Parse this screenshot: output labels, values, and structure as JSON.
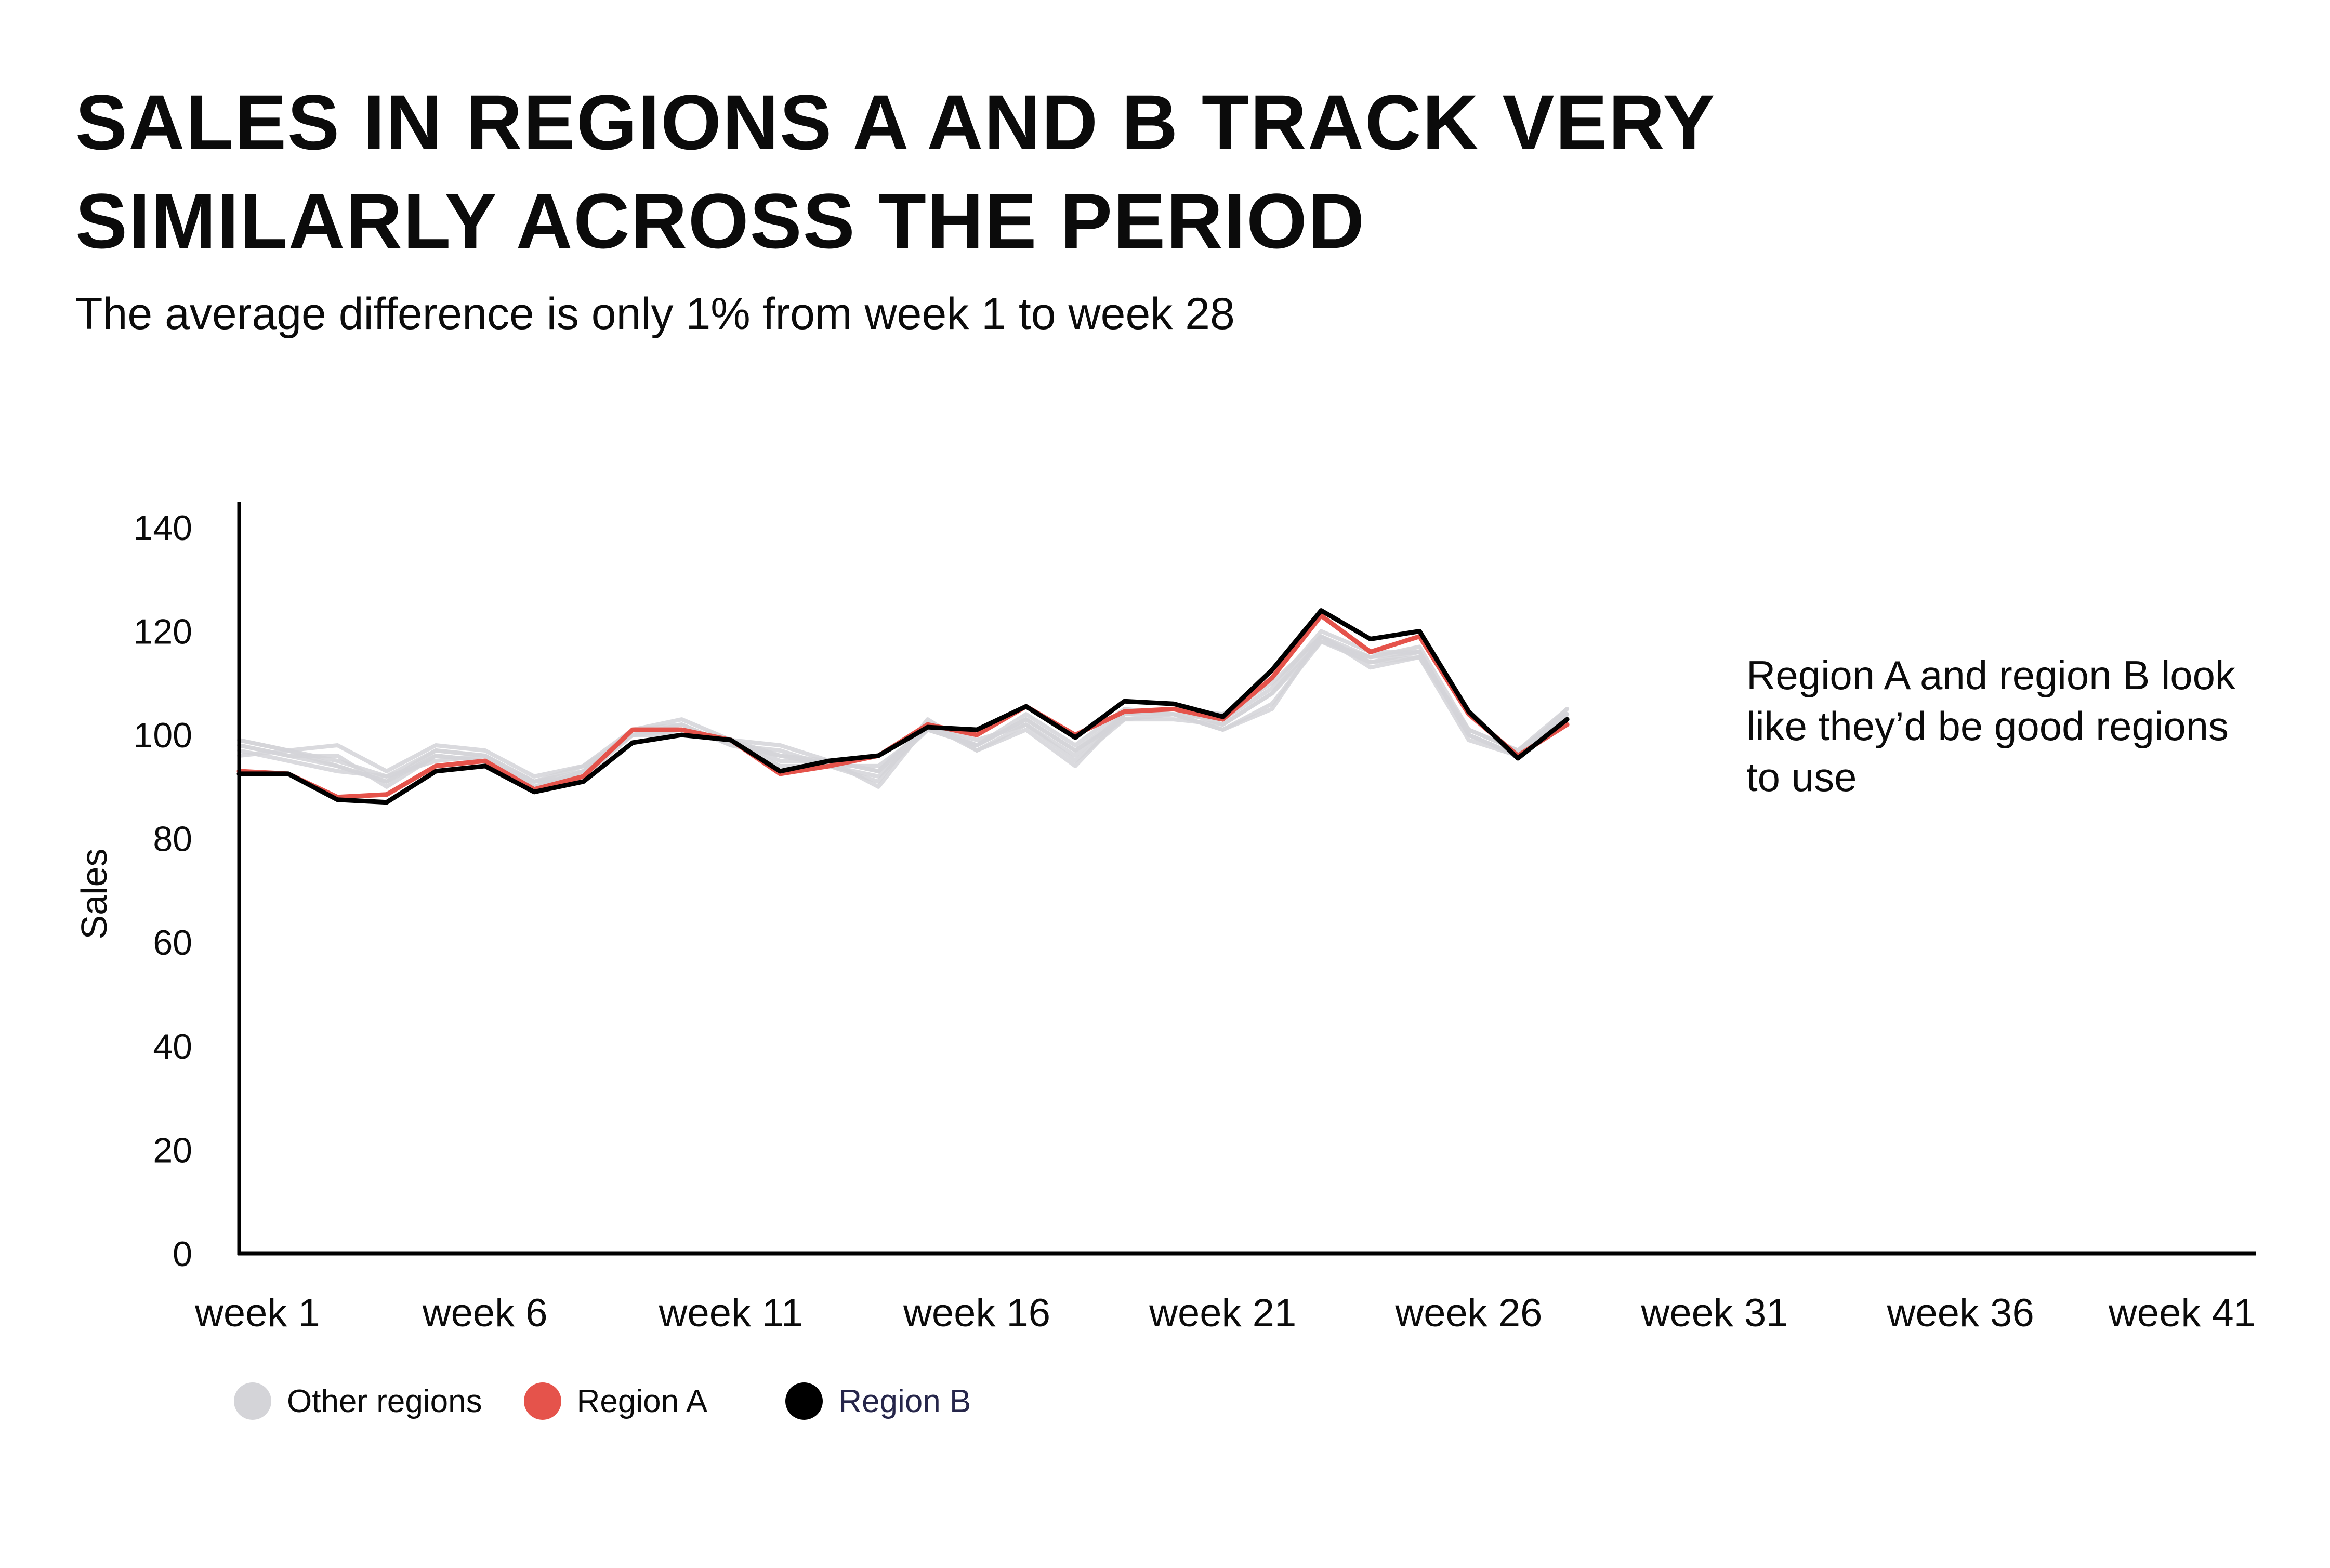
{
  "title": "SALES IN REGIONS A AND B TRACK VERY SIMILARLY ACROSS THE PERIOD",
  "subtitle": "The average difference is only 1% from week 1 to week 28",
  "annotation": "Region A and region B look like they’d be good regions to use",
  "colors": {
    "other": "#d4d4d8",
    "regionA": "#e5534b",
    "regionB": "#000000",
    "regionB_legend_text": "#26264a",
    "axis": "#000000"
  },
  "legend": [
    {
      "label": "Other regions",
      "color": "#d4d4d8",
      "text_color": "#0b0b0b"
    },
    {
      "label": "Region A",
      "color": "#e5534b",
      "text_color": "#0b0b0b"
    },
    {
      "label": "Region B",
      "color": "#000000",
      "text_color": "#26264a"
    }
  ],
  "chart_data": {
    "type": "line",
    "title": "SALES IN REGIONS A AND B TRACK VERY SIMILARLY ACROSS THE PERIOD",
    "subtitle": "The average difference is only 1% from week 1 to week 28",
    "xlabel": "",
    "ylabel": "Sales",
    "ylim": [
      0,
      145
    ],
    "yticks": [
      0,
      20,
      40,
      60,
      80,
      100,
      120,
      140
    ],
    "x_range": [
      1,
      42
    ],
    "xtick_weeks": [
      1,
      6,
      11,
      16,
      21,
      26,
      31,
      36,
      41
    ],
    "xtick_labels": [
      "week 1",
      "week 6",
      "week 11",
      "week 16",
      "week 21",
      "week 26",
      "week 31",
      "week 36",
      "week 41"
    ],
    "legend_position": "bottom-left",
    "series": [
      {
        "name": "Other regions",
        "group": "other",
        "values": [
          99,
          97,
          98,
          93,
          98,
          97,
          92,
          94,
          101,
          103,
          99,
          98,
          95,
          90,
          102,
          97,
          101,
          94,
          104,
          104,
          101,
          105,
          119,
          114,
          116,
          100,
          96,
          105
        ]
      },
      {
        "name": "Other regions",
        "group": "other",
        "values": [
          98,
          96,
          94,
          91,
          96,
          95,
          90,
          93,
          100,
          102,
          98,
          96,
          94,
          92,
          101,
          98,
          103,
          97,
          103,
          103,
          102,
          108,
          118,
          115,
          117,
          101,
          97,
          104
        ]
      },
      {
        "name": "Other regions",
        "group": "other",
        "values": [
          97,
          95,
          93,
          92,
          95,
          96,
          91,
          92,
          100,
          101,
          99,
          95,
          95,
          93,
          102,
          99,
          102,
          96,
          104,
          105,
          104,
          110,
          119,
          113,
          115,
          99,
          96,
          104
        ]
      },
      {
        "name": "Other regions",
        "group": "other",
        "values": [
          96,
          97,
          95,
          92,
          97,
          96,
          90,
          93,
          100,
          100,
          99,
          94,
          94,
          94,
          101,
          98,
          104,
          98,
          105,
          104,
          103,
          109,
          120,
          116,
          116,
          100,
          96,
          103
        ]
      },
      {
        "name": "Other regions",
        "group": "other",
        "values": [
          98,
          96,
          96,
          90,
          96,
          95,
          91,
          93,
          101,
          102,
          98,
          97,
          94,
          91,
          103,
          97,
          102,
          95,
          103,
          104,
          101,
          106,
          118,
          114,
          115,
          101,
          97,
          105
        ]
      },
      {
        "name": "Other regions",
        "group": "other",
        "values": [
          99,
          97,
          94,
          91,
          97,
          96,
          91,
          94,
          100,
          101,
          99,
          96,
          95,
          93,
          102,
          98,
          103,
          97,
          104,
          105,
          102,
          108,
          119,
          115,
          116,
          100,
          96,
          104
        ]
      },
      {
        "name": "Region A",
        "group": "regionA",
        "values": [
          93,
          92.5,
          88,
          88.5,
          94,
          95,
          89.5,
          92,
          101,
          101,
          99,
          92.5,
          94,
          96,
          102,
          100,
          105.5,
          100,
          104.5,
          105,
          103,
          111,
          123,
          116,
          119,
          104,
          96,
          102
        ]
      },
      {
        "name": "Region B",
        "group": "regionB",
        "values": [
          92.5,
          92.5,
          87.5,
          87,
          93,
          94,
          89,
          91,
          98.5,
          100,
          99,
          93,
          95,
          96,
          101.5,
          101,
          105.5,
          99.5,
          106.5,
          106,
          103.5,
          112.5,
          124,
          118.5,
          120,
          104.5,
          95.5,
          103
        ]
      }
    ]
  }
}
